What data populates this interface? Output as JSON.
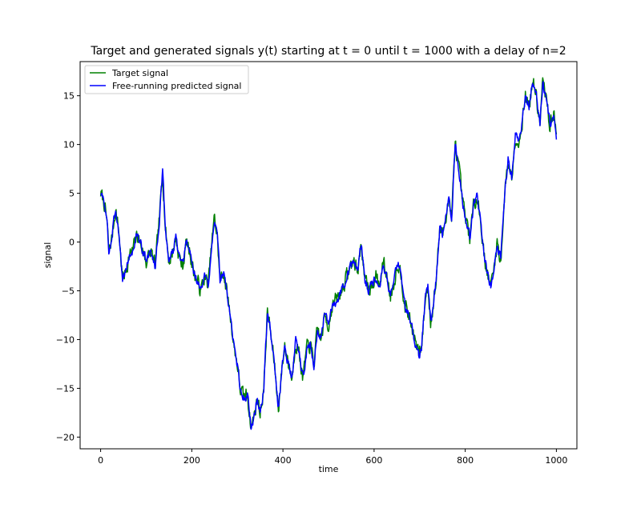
{
  "chart_data": {
    "type": "line",
    "title": "Target and generated signals y(t) starting at t = 0 until t = 1000 with a delay of n=2",
    "xlabel": "time",
    "ylabel": "signal",
    "xlim": [
      -45,
      1045
    ],
    "ylim": [
      -21.2,
      18.5
    ],
    "xticks": [
      0,
      200,
      400,
      600,
      800,
      1000
    ],
    "yticks": [
      -20,
      -15,
      -10,
      -5,
      0,
      5,
      10,
      15
    ],
    "grid": false,
    "legend_position": "top-left",
    "colors": {
      "target": "#008000",
      "predicted": "#0000ff"
    },
    "key_points": [
      [
        0,
        5.0
      ],
      [
        8,
        4.0
      ],
      [
        14,
        2.0
      ],
      [
        18,
        -1.0
      ],
      [
        25,
        0.5
      ],
      [
        33,
        3.5
      ],
      [
        40,
        1.0
      ],
      [
        48,
        -3.8
      ],
      [
        55,
        -3.0
      ],
      [
        62,
        -1.5
      ],
      [
        70,
        -1.0
      ],
      [
        80,
        0.8
      ],
      [
        90,
        -0.5
      ],
      [
        100,
        -2.0
      ],
      [
        110,
        -1.0
      ],
      [
        120,
        -2.5
      ],
      [
        130,
        3.0
      ],
      [
        136,
        7.2
      ],
      [
        142,
        1.5
      ],
      [
        150,
        -2.0
      ],
      [
        158,
        -1.0
      ],
      [
        165,
        0.5
      ],
      [
        172,
        -1.5
      ],
      [
        180,
        -2.5
      ],
      [
        188,
        0.0
      ],
      [
        196,
        -1.0
      ],
      [
        204,
        -3.0
      ],
      [
        212,
        -4.0
      ],
      [
        220,
        -5.0
      ],
      [
        228,
        -3.5
      ],
      [
        236,
        -4.5
      ],
      [
        244,
        0.0
      ],
      [
        250,
        2.5
      ],
      [
        256,
        0.5
      ],
      [
        262,
        -4.0
      ],
      [
        270,
        -3.0
      ],
      [
        278,
        -5.5
      ],
      [
        286,
        -8.0
      ],
      [
        292,
        -10.5
      ],
      [
        300,
        -12.5
      ],
      [
        306,
        -15.0
      ],
      [
        314,
        -16.0
      ],
      [
        322,
        -15.5
      ],
      [
        330,
        -19.0
      ],
      [
        336,
        -18.0
      ],
      [
        344,
        -16.0
      ],
      [
        350,
        -17.5
      ],
      [
        358,
        -15.0
      ],
      [
        366,
        -7.0
      ],
      [
        372,
        -9.0
      ],
      [
        380,
        -12.0
      ],
      [
        390,
        -17.0
      ],
      [
        398,
        -13.0
      ],
      [
        404,
        -10.5
      ],
      [
        412,
        -12.5
      ],
      [
        420,
        -14.0
      ],
      [
        428,
        -10.0
      ],
      [
        436,
        -11.5
      ],
      [
        444,
        -14.0
      ],
      [
        452,
        -11.0
      ],
      [
        460,
        -10.5
      ],
      [
        468,
        -12.5
      ],
      [
        476,
        -9.0
      ],
      [
        484,
        -10.0
      ],
      [
        492,
        -7.5
      ],
      [
        500,
        -8.5
      ],
      [
        508,
        -6.5
      ],
      [
        516,
        -6.0
      ],
      [
        524,
        -5.5
      ],
      [
        532,
        -4.5
      ],
      [
        540,
        -3.5
      ],
      [
        548,
        -2.5
      ],
      [
        556,
        -2.0
      ],
      [
        564,
        -3.0
      ],
      [
        572,
        0.0
      ],
      [
        580,
        -4.0
      ],
      [
        588,
        -5.0
      ],
      [
        596,
        -4.0
      ],
      [
        604,
        -3.5
      ],
      [
        612,
        -4.5
      ],
      [
        620,
        -2.0
      ],
      [
        628,
        -3.5
      ],
      [
        636,
        -5.5
      ],
      [
        644,
        -4.0
      ],
      [
        652,
        -2.0
      ],
      [
        660,
        -3.5
      ],
      [
        668,
        -6.5
      ],
      [
        676,
        -7.5
      ],
      [
        684,
        -9.0
      ],
      [
        692,
        -10.5
      ],
      [
        698,
        -11.5
      ],
      [
        704,
        -11.0
      ],
      [
        712,
        -6.0
      ],
      [
        718,
        -4.5
      ],
      [
        724,
        -8.0
      ],
      [
        730,
        -6.5
      ],
      [
        736,
        -4.0
      ],
      [
        744,
        1.5
      ],
      [
        750,
        0.5
      ],
      [
        758,
        3.0
      ],
      [
        764,
        4.5
      ],
      [
        770,
        2.5
      ],
      [
        778,
        10.0
      ],
      [
        786,
        7.5
      ],
      [
        794,
        4.0
      ],
      [
        802,
        2.0
      ],
      [
        810,
        0.5
      ],
      [
        818,
        3.5
      ],
      [
        826,
        5.0
      ],
      [
        834,
        2.0
      ],
      [
        842,
        -1.5
      ],
      [
        850,
        -3.5
      ],
      [
        856,
        -4.5
      ],
      [
        862,
        -3.0
      ],
      [
        870,
        0.0
      ],
      [
        878,
        -2.0
      ],
      [
        886,
        4.5
      ],
      [
        894,
        8.5
      ],
      [
        902,
        6.5
      ],
      [
        910,
        11.0
      ],
      [
        918,
        10.0
      ],
      [
        926,
        13.0
      ],
      [
        932,
        15.0
      ],
      [
        940,
        14.0
      ],
      [
        948,
        16.5
      ],
      [
        956,
        15.0
      ],
      [
        964,
        12.0
      ],
      [
        970,
        16.5
      ],
      [
        978,
        14.5
      ],
      [
        986,
        12.0
      ],
      [
        994,
        13.5
      ],
      [
        1000,
        10.5
      ]
    ],
    "series": [
      {
        "name": "Target signal",
        "color": "#008000",
        "noise_seed": 7,
        "noise_amp": 0.9
      },
      {
        "name": "Free-running predicted signal",
        "color": "#0000ff",
        "noise_seed": 3,
        "noise_amp": 0.55
      }
    ]
  }
}
